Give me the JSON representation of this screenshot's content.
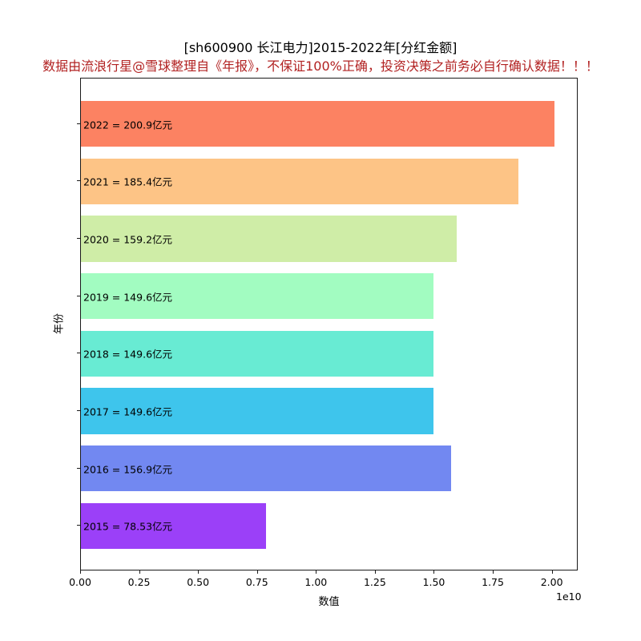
{
  "title": "[sh600900 长江电力]2015-2022年[分红金额]",
  "subtitle": "数据由流浪行星@雪球整理自《年报》，不保证100%正确，投资决策之前务必自行确认数据！！！",
  "colors": {
    "subtitle": "#b22222",
    "frame": "#1a1a1a",
    "background": "#ffffff"
  },
  "chart_data": {
    "type": "bar",
    "orientation": "horizontal",
    "title": "[sh600900 长江电力]2015-2022年[分红金额]",
    "subtitle": "数据由流浪行星@雪球整理自《年报》，不保证100%正确，投资决策之前务必自行确认数据！！！",
    "xlabel": "数值",
    "ylabel": "年份",
    "x_offset_label": "1e10",
    "grid": false,
    "legend": false,
    "xlim": [
      0,
      21100000000
    ],
    "x_ticks": [
      {
        "value": 0,
        "label": "0.00"
      },
      {
        "value": 2500000000,
        "label": "0.25"
      },
      {
        "value": 5000000000,
        "label": "0.50"
      },
      {
        "value": 7500000000,
        "label": "0.75"
      },
      {
        "value": 10000000000,
        "label": "1.00"
      },
      {
        "value": 12500000000,
        "label": "1.25"
      },
      {
        "value": 15000000000,
        "label": "1.50"
      },
      {
        "value": 17500000000,
        "label": "1.75"
      },
      {
        "value": 20000000000,
        "label": "2.00"
      }
    ],
    "categories": [
      "2022",
      "2021",
      "2020",
      "2019",
      "2018",
      "2017",
      "2016",
      "2015"
    ],
    "values": [
      20090000000,
      18540000000,
      15920000000,
      14960000000,
      14960000000,
      14960000000,
      15690000000,
      7853000000
    ],
    "values_yi": [
      200.9,
      185.4,
      159.2,
      149.6,
      149.6,
      149.6,
      156.9,
      78.53
    ],
    "bar_labels": [
      "2022 = 200.9亿元",
      "2021 = 185.4亿元",
      "2020 = 159.2亿元",
      "2019 = 149.6亿元",
      "2018 = 149.6亿元",
      "2017 = 149.6亿元",
      "2016 = 156.9亿元",
      "2015 = 78.53亿元"
    ],
    "bar_colors": [
      "#fc8262",
      "#fdc486",
      "#cfeda7",
      "#a2fcc1",
      "#68ebd3",
      "#3ec5ec",
      "#7288f1",
      "#9b40f8"
    ],
    "ylim_units": [
      -0.79,
      7.79
    ],
    "bar_height_fraction": 0.8
  }
}
